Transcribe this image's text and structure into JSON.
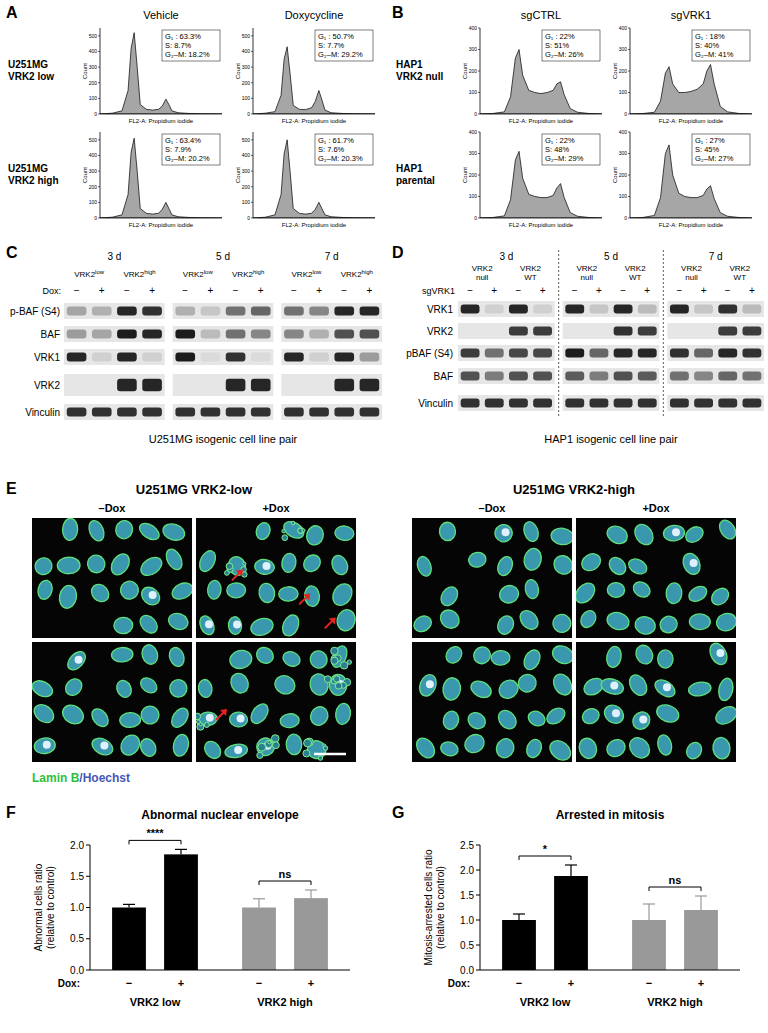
{
  "panel_labels": [
    "A",
    "B",
    "C",
    "D",
    "E",
    "F",
    "G"
  ],
  "panel_a": {
    "columns": [
      "Vehicle",
      "Doxycycline"
    ],
    "rows": [
      "U251MG VRK2 low",
      "U251MG VRK2 high"
    ]
  },
  "panel_b": {
    "columns": [
      "sgCTRL",
      "sgVRK1"
    ],
    "rows": [
      "HAP1 VRK2 null",
      "HAP1 parental"
    ]
  },
  "chart_data": [
    {
      "type": "area",
      "x_label": "FL2-A: Propidium iodide",
      "y_label": "Count",
      "color": "#a6a6a6",
      "x": [
        0,
        100,
        180,
        230,
        255,
        280,
        305,
        330,
        380,
        430,
        480,
        510,
        540,
        565,
        590,
        640,
        740,
        840,
        1000
      ],
      "values": [
        0,
        5,
        20,
        150,
        420,
        520,
        300,
        60,
        30,
        25,
        30,
        50,
        95,
        60,
        20,
        8,
        3,
        1,
        0
      ],
      "xlim": [
        0,
        1000
      ],
      "ylim": [
        0,
        550
      ],
      "yticks": [
        0,
        100,
        200,
        300,
        400,
        500
      ],
      "tick_labels": "y",
      "annotations": [
        "G₁ : 63.3%",
        "S: 8.7%",
        "G₂–M: 18.2%"
      ]
    },
    {
      "type": "area",
      "x_label": "FL2-A: Propidium iodide",
      "y_label": "Count",
      "color": "#a6a6a6",
      "x": [
        0,
        100,
        180,
        230,
        255,
        280,
        305,
        330,
        380,
        430,
        480,
        510,
        540,
        565,
        590,
        640,
        740,
        840,
        1000
      ],
      "values": [
        0,
        5,
        15,
        120,
        350,
        430,
        250,
        55,
        30,
        28,
        40,
        80,
        150,
        90,
        25,
        8,
        3,
        1,
        0
      ],
      "xlim": [
        0,
        1000
      ],
      "ylim": [
        0,
        550
      ],
      "yticks": [
        0,
        100,
        200,
        300,
        400,
        500
      ],
      "tick_labels": "y",
      "annotations": [
        "G₁ : 50.7%",
        "S: 7.7%",
        "G₂–M: 29.2%"
      ]
    },
    {
      "type": "area",
      "x_label": "FL2-A: Propidium iodide",
      "y_label": "Count",
      "color": "#a6a6a6",
      "x": [
        0,
        100,
        180,
        230,
        255,
        280,
        305,
        330,
        380,
        430,
        480,
        510,
        540,
        565,
        590,
        640,
        740,
        840,
        1000
      ],
      "values": [
        0,
        5,
        20,
        150,
        420,
        510,
        300,
        60,
        30,
        25,
        30,
        55,
        100,
        60,
        20,
        8,
        3,
        1,
        0
      ],
      "xlim": [
        0,
        1000
      ],
      "ylim": [
        0,
        550
      ],
      "yticks": [
        0,
        100,
        200,
        300,
        400,
        500
      ],
      "tick_labels": "y",
      "annotations": [
        "G₁ : 63.4%",
        "S: 7.9%",
        "G₂–M: 20.2%"
      ]
    },
    {
      "type": "area",
      "x_label": "FL2-A: Propidium iodide",
      "y_label": "Count",
      "color": "#a6a6a6",
      "x": [
        0,
        100,
        180,
        230,
        255,
        280,
        305,
        330,
        380,
        430,
        480,
        510,
        540,
        565,
        590,
        640,
        740,
        840,
        1000
      ],
      "values": [
        0,
        5,
        20,
        150,
        410,
        500,
        290,
        60,
        30,
        25,
        30,
        55,
        100,
        60,
        20,
        8,
        3,
        1,
        0
      ],
      "xlim": [
        0,
        1000
      ],
      "ylim": [
        0,
        550
      ],
      "yticks": [
        0,
        100,
        200,
        300,
        400,
        500
      ],
      "tick_labels": "y",
      "annotations": [
        "G₁ : 61.7%",
        "S: 7.6%",
        "G₂–M: 20.3%"
      ]
    },
    {
      "type": "area",
      "x_label": "FL2-A: Propidium iodide",
      "y_label": "Count",
      "color": "#a6a6a6",
      "x": [
        0,
        100,
        200,
        250,
        290,
        320,
        350,
        400,
        450,
        500,
        550,
        600,
        630,
        660,
        690,
        740,
        800,
        900,
        1000
      ],
      "values": [
        0,
        2,
        10,
        80,
        260,
        300,
        180,
        110,
        100,
        95,
        100,
        110,
        140,
        150,
        90,
        25,
        8,
        2,
        0
      ],
      "xlim": [
        0,
        1000
      ],
      "ylim": [
        0,
        400
      ],
      "yticks": [
        0,
        100,
        200,
        300,
        400
      ],
      "tick_labels": "y",
      "annotations": [
        "G₁ : 22%",
        "S: 51%",
        "G₂–M: 26%"
      ]
    },
    {
      "type": "area",
      "x_label": "FL2-A: Propidium iodide",
      "y_label": "Count",
      "color": "#a6a6a6",
      "x": [
        0,
        100,
        200,
        250,
        290,
        320,
        350,
        400,
        450,
        500,
        550,
        600,
        630,
        660,
        690,
        740,
        800,
        900,
        1000
      ],
      "values": [
        0,
        2,
        8,
        60,
        190,
        220,
        140,
        100,
        100,
        105,
        115,
        140,
        200,
        230,
        140,
        35,
        10,
        2,
        0
      ],
      "xlim": [
        0,
        1000
      ],
      "ylim": [
        0,
        400
      ],
      "yticks": [
        0,
        100,
        200,
        300,
        400
      ],
      "tick_labels": "y",
      "annotations": [
        "G₁ : 18%",
        "S: 40%",
        "G₂–M: 41%"
      ]
    },
    {
      "type": "area",
      "x_label": "FL2-A: Propidium iodide",
      "y_label": "Count",
      "color": "#a6a6a6",
      "x": [
        0,
        100,
        200,
        250,
        290,
        320,
        350,
        400,
        450,
        500,
        550,
        600,
        630,
        660,
        690,
        740,
        800,
        900,
        1000
      ],
      "values": [
        0,
        2,
        10,
        85,
        270,
        310,
        185,
        110,
        100,
        95,
        95,
        105,
        140,
        160,
        95,
        25,
        8,
        2,
        0
      ],
      "xlim": [
        0,
        1000
      ],
      "ylim": [
        0,
        400
      ],
      "yticks": [
        0,
        100,
        200,
        300,
        400
      ],
      "tick_labels": "y",
      "annotations": [
        "G₁ : 22%",
        "S: 48%",
        "G₂–M: 29%"
      ]
    },
    {
      "type": "area",
      "x_label": "FL2-A: Propidium iodide",
      "y_label": "Count",
      "color": "#a6a6a6",
      "x": [
        0,
        100,
        200,
        250,
        290,
        320,
        350,
        400,
        450,
        500,
        550,
        600,
        630,
        660,
        690,
        740,
        800,
        900,
        1000
      ],
      "values": [
        0,
        2,
        12,
        95,
        300,
        340,
        200,
        115,
        100,
        95,
        95,
        105,
        135,
        150,
        90,
        25,
        8,
        2,
        0
      ],
      "xlim": [
        0,
        1000
      ],
      "ylim": [
        0,
        400
      ],
      "yticks": [
        0,
        100,
        200,
        300,
        400
      ],
      "tick_labels": "y",
      "annotations": [
        "G₁ : 27%",
        "S: 45%",
        "G₂–M: 27%"
      ]
    },
    {
      "type": "bar",
      "title": "Abnormal nuclear envelope",
      "y_label": "Abnormal cells ratio (relative to control)",
      "category_label": "Dox:",
      "categories": [
        "−",
        "+",
        "−",
        "+"
      ],
      "groups": [
        "VRK2 low",
        "VRK2 high"
      ],
      "values": [
        1.0,
        1.85,
        1.0,
        1.15
      ],
      "errors": [
        0.05,
        0.08,
        0.14,
        0.13
      ],
      "colors": [
        "#000000",
        "#000000",
        "#999999",
        "#999999"
      ],
      "ylim": [
        0,
        2.0
      ],
      "yticks": [
        {
          "value": 0,
          "label": "0.0"
        },
        {
          "value": 0.5,
          "label": "0.5"
        },
        {
          "value": 1.0,
          "label": "1.0"
        },
        {
          "value": 1.5,
          "label": "1.5"
        },
        {
          "value": 2.0,
          "label": "2.0"
        }
      ],
      "significance": [
        {
          "label": "****",
          "between": [
            0,
            1
          ]
        },
        {
          "label": "ns",
          "between": [
            2,
            3
          ]
        }
      ]
    },
    {
      "type": "bar",
      "title": "Arrested in mitosis",
      "y_label": "Mitosis-arrested cells ratio (relative to control)",
      "category_label": "Dox:",
      "categories": [
        "−",
        "+",
        "−",
        "+"
      ],
      "groups": [
        "VRK2 low",
        "VRK2 high"
      ],
      "values": [
        1.0,
        1.88,
        1.0,
        1.2
      ],
      "errors": [
        0.12,
        0.22,
        0.32,
        0.28
      ],
      "colors": [
        "#000000",
        "#000000",
        "#999999",
        "#999999"
      ],
      "ylim": [
        0,
        2.5
      ],
      "yticks": [
        {
          "value": 0,
          "label": "0.0"
        },
        {
          "value": 0.5,
          "label": "0.5"
        },
        {
          "value": 1.0,
          "label": "1.0"
        },
        {
          "value": 1.5,
          "label": "1.5"
        },
        {
          "value": 2.0,
          "label": "2.0"
        },
        {
          "value": 2.5,
          "label": "2.5"
        }
      ],
      "significance": [
        {
          "label": "*",
          "between": [
            0,
            1
          ]
        },
        {
          "label": "ns",
          "between": [
            2,
            3
          ]
        }
      ]
    }
  ],
  "blot_c": {
    "caption": "U251MG isogenic cell line pair",
    "timepoints": [
      "3 d",
      "5 d",
      "7 d"
    ],
    "groups": [
      {
        "text": "VRK2",
        "sup": "low"
      },
      {
        "text": "VRK2",
        "sup": "high"
      }
    ],
    "treatment_label": "Dox:",
    "lane_signs": [
      "−",
      "+"
    ],
    "rows": [
      {
        "label": "p-BAF (S4)",
        "bands": [
          0.3,
          0.25,
          0.9,
          0.85,
          0.25,
          0.15,
          0.55,
          0.6,
          0.55,
          0.45,
          0.9,
          0.9
        ]
      },
      {
        "label": "BAF",
        "bands": [
          0.35,
          0.3,
          0.95,
          0.9,
          0.95,
          0.2,
          0.55,
          0.45,
          0.45,
          0.25,
          0.7,
          0.7
        ]
      },
      {
        "label": "VRK1",
        "bands": [
          0.9,
          0.1,
          0.9,
          0.1,
          0.95,
          0.05,
          0.85,
          0.05,
          0.9,
          0.1,
          0.9,
          0.35
        ]
      },
      {
        "label": "VRK2",
        "bands": [
          0,
          0,
          0.9,
          0.9,
          0,
          0,
          0.9,
          0.9,
          0,
          0,
          0.9,
          0.9
        ]
      },
      {
        "label": "Vinculin",
        "bands": [
          0.85,
          0.85,
          0.85,
          0.85,
          0.85,
          0.85,
          0.85,
          0.85,
          0.85,
          0.85,
          0.85,
          0.85
        ]
      }
    ]
  },
  "blot_d": {
    "caption": "HAP1 isogenic cell line pair",
    "timepoints": [
      "3 d",
      "5 d",
      "7 d"
    ],
    "groups": [
      {
        "text": "VRK2 null"
      },
      {
        "text": "VRK2 WT"
      }
    ],
    "treatment_label": "sgVRK1",
    "lane_signs": [
      "−",
      "+"
    ],
    "rows": [
      {
        "label": "VRK1",
        "bands": [
          0.9,
          0.1,
          0.9,
          0.1,
          0.9,
          0.15,
          0.9,
          0.2,
          0.9,
          0.15,
          0.85,
          0.2
        ]
      },
      {
        "label": "VRK2",
        "bands": [
          0,
          0,
          0.8,
          0.8,
          0,
          0,
          0.85,
          0.8,
          0,
          0,
          0.8,
          0.8
        ]
      },
      {
        "label": "pBAF (S4)",
        "bands": [
          0.8,
          0.55,
          0.75,
          0.75,
          0.95,
          0.6,
          0.9,
          0.9,
          0.85,
          0.6,
          0.9,
          0.85
        ]
      },
      {
        "label": "BAF",
        "bands": [
          0.7,
          0.5,
          0.7,
          0.7,
          0.65,
          0.5,
          0.7,
          0.65,
          0.55,
          0.45,
          0.6,
          0.55
        ]
      },
      {
        "label": "Vinculin",
        "bands": [
          0.85,
          0.85,
          0.85,
          0.85,
          0.85,
          0.85,
          0.85,
          0.85,
          0.85,
          0.85,
          0.85,
          0.85
        ]
      }
    ]
  },
  "panel_e": {
    "left_title": "U251MG VRK2-low",
    "right_title": "U251MG VRK2-high",
    "columns": [
      "–Dox",
      "+Dox"
    ],
    "stain_legend": [
      {
        "text": "Lamin B",
        "color": "#2fbf3f"
      },
      {
        "text": "/Hoechst",
        "color": "#4657b8"
      }
    ]
  }
}
